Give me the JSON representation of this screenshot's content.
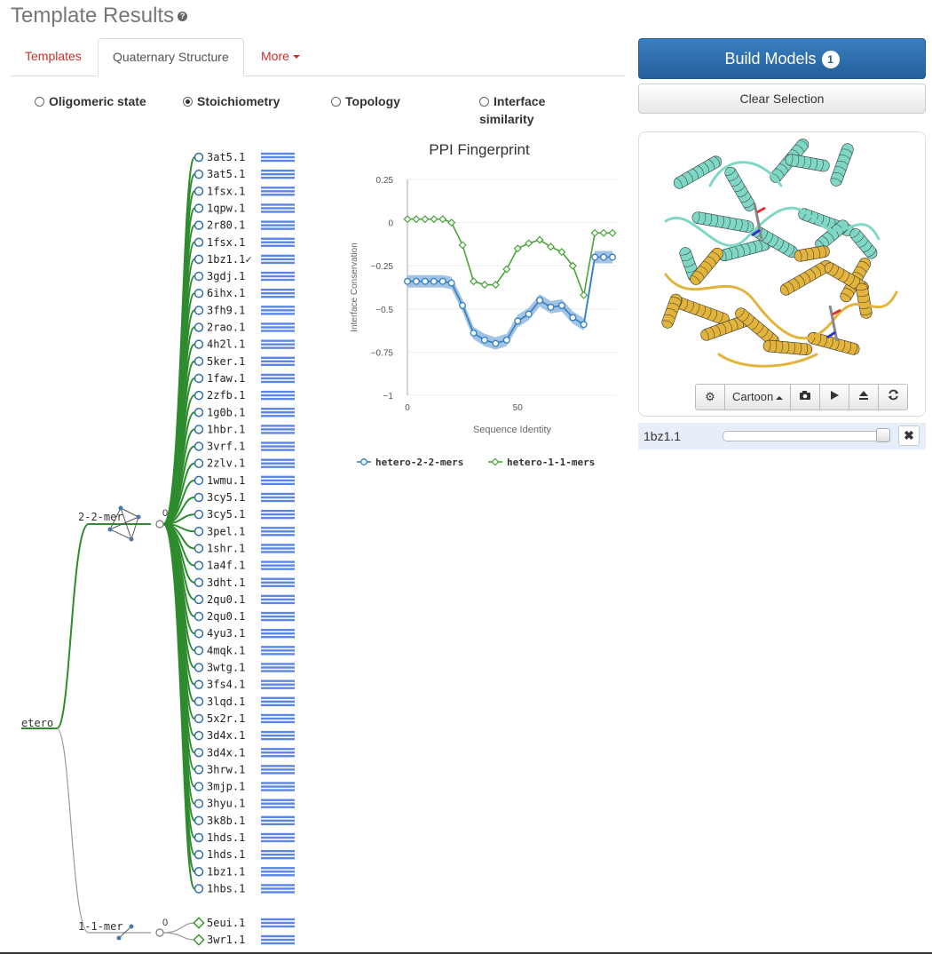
{
  "header": {
    "title": "Template Results",
    "help_icon": "?"
  },
  "tabs": [
    {
      "label": "Templates",
      "active": false
    },
    {
      "label": "Quaternary Structure",
      "active": true
    },
    {
      "label": "More",
      "active": false,
      "dropdown": true
    }
  ],
  "view_options": [
    {
      "label": "Oligomeric state",
      "selected": false
    },
    {
      "label": "Stoichiometry",
      "selected": true
    },
    {
      "label": "Topology",
      "selected": false
    },
    {
      "label": "Interface",
      "label2": "similarity",
      "selected": false
    }
  ],
  "tree": {
    "root": "etero",
    "groups": [
      {
        "label": "2-2-mer",
        "count": "0",
        "marker": "circle",
        "color": "#2e8b2e",
        "leaves": [
          "3at5.1",
          "3at5.1",
          "1fsx.1",
          "1qpw.1",
          "2r80.1",
          "1fsx.1",
          "1bz1.1✓",
          "3gdj.1",
          "6ihx.1",
          "3fh9.1",
          "2rao.1",
          "4h2l.1",
          "5ker.1",
          "1faw.1",
          "2zfb.1",
          "1g0b.1",
          "1hbr.1",
          "3vrf.1",
          "2zlv.1",
          "1wmu.1",
          "3cy5.1",
          "3cy5.1",
          "3pel.1",
          "1shr.1",
          "1a4f.1",
          "3dht.1",
          "2qu0.1",
          "2qu0.1",
          "4yu3.1",
          "4mqk.1",
          "3wtg.1",
          "3fs4.1",
          "3lqd.1",
          "5x2r.1",
          "3d4x.1",
          "3d4x.1",
          "3hrw.1",
          "3mjp.1",
          "3hyu.1",
          "3k8b.1",
          "1hds.1",
          "1hds.1",
          "1bz1.1",
          "1hbs.1"
        ]
      },
      {
        "label": "1-1-mer",
        "count": "0",
        "marker": "diamond",
        "color": "#999999",
        "leaves": [
          "5eui.1",
          "3wr1.1"
        ]
      }
    ]
  },
  "chart_data": {
    "type": "line",
    "title": "PPI Fingerprint",
    "xlabel": "Sequence Identity",
    "ylabel": "Interface Conservation",
    "xlim": [
      0,
      95
    ],
    "ylim": [
      -1,
      0.25
    ],
    "xticks": [
      "0",
      "50"
    ],
    "yticks": [
      "0.25",
      "0",
      "−0.25",
      "−0.5",
      "−0.75",
      "−1"
    ],
    "legend_position": "bottom",
    "series": [
      {
        "name": "hetero-2-2-mers",
        "color": "#2f7fc1",
        "marker": "circle",
        "band": true,
        "x": [
          0,
          4,
          8,
          12,
          16,
          20,
          25,
          30,
          35,
          40,
          45,
          50,
          55,
          60,
          65,
          70,
          75,
          80,
          85,
          89,
          93
        ],
        "y": [
          -0.34,
          -0.34,
          -0.34,
          -0.34,
          -0.34,
          -0.35,
          -0.48,
          -0.64,
          -0.68,
          -0.7,
          -0.68,
          -0.57,
          -0.53,
          -0.45,
          -0.49,
          -0.48,
          -0.55,
          -0.59,
          -0.2,
          -0.2,
          -0.2
        ]
      },
      {
        "name": "hetero-1-1-mers",
        "color": "#4aa33b",
        "marker": "diamond",
        "band": false,
        "x": [
          0,
          4,
          8,
          12,
          16,
          20,
          25,
          30,
          35,
          40,
          45,
          50,
          55,
          60,
          65,
          70,
          75,
          80,
          85,
          89,
          93
        ],
        "y": [
          0.02,
          0.02,
          0.02,
          0.02,
          0.02,
          0.0,
          -0.13,
          -0.34,
          -0.36,
          -0.36,
          -0.27,
          -0.15,
          -0.12,
          -0.1,
          -0.14,
          -0.17,
          -0.25,
          -0.42,
          -0.06,
          -0.06,
          -0.06
        ]
      }
    ]
  },
  "right_panel": {
    "build_label": "Build Models",
    "build_badge": "1",
    "clear_label": "Clear Selection",
    "viewer_toolbar": {
      "settings_icon": "gear-icon",
      "mode": "Cartoon",
      "camera_icon": "camera-icon",
      "play_icon": "play-icon",
      "eject_icon": "eject-icon",
      "reset_icon": "refresh-icon"
    },
    "selection": {
      "label": "1bz1.1",
      "slider_value": 1.0,
      "remove_icon": "close-icon"
    },
    "colors": {
      "chain_a": "#7fd8c6",
      "chain_b": "#e2b43c"
    }
  }
}
